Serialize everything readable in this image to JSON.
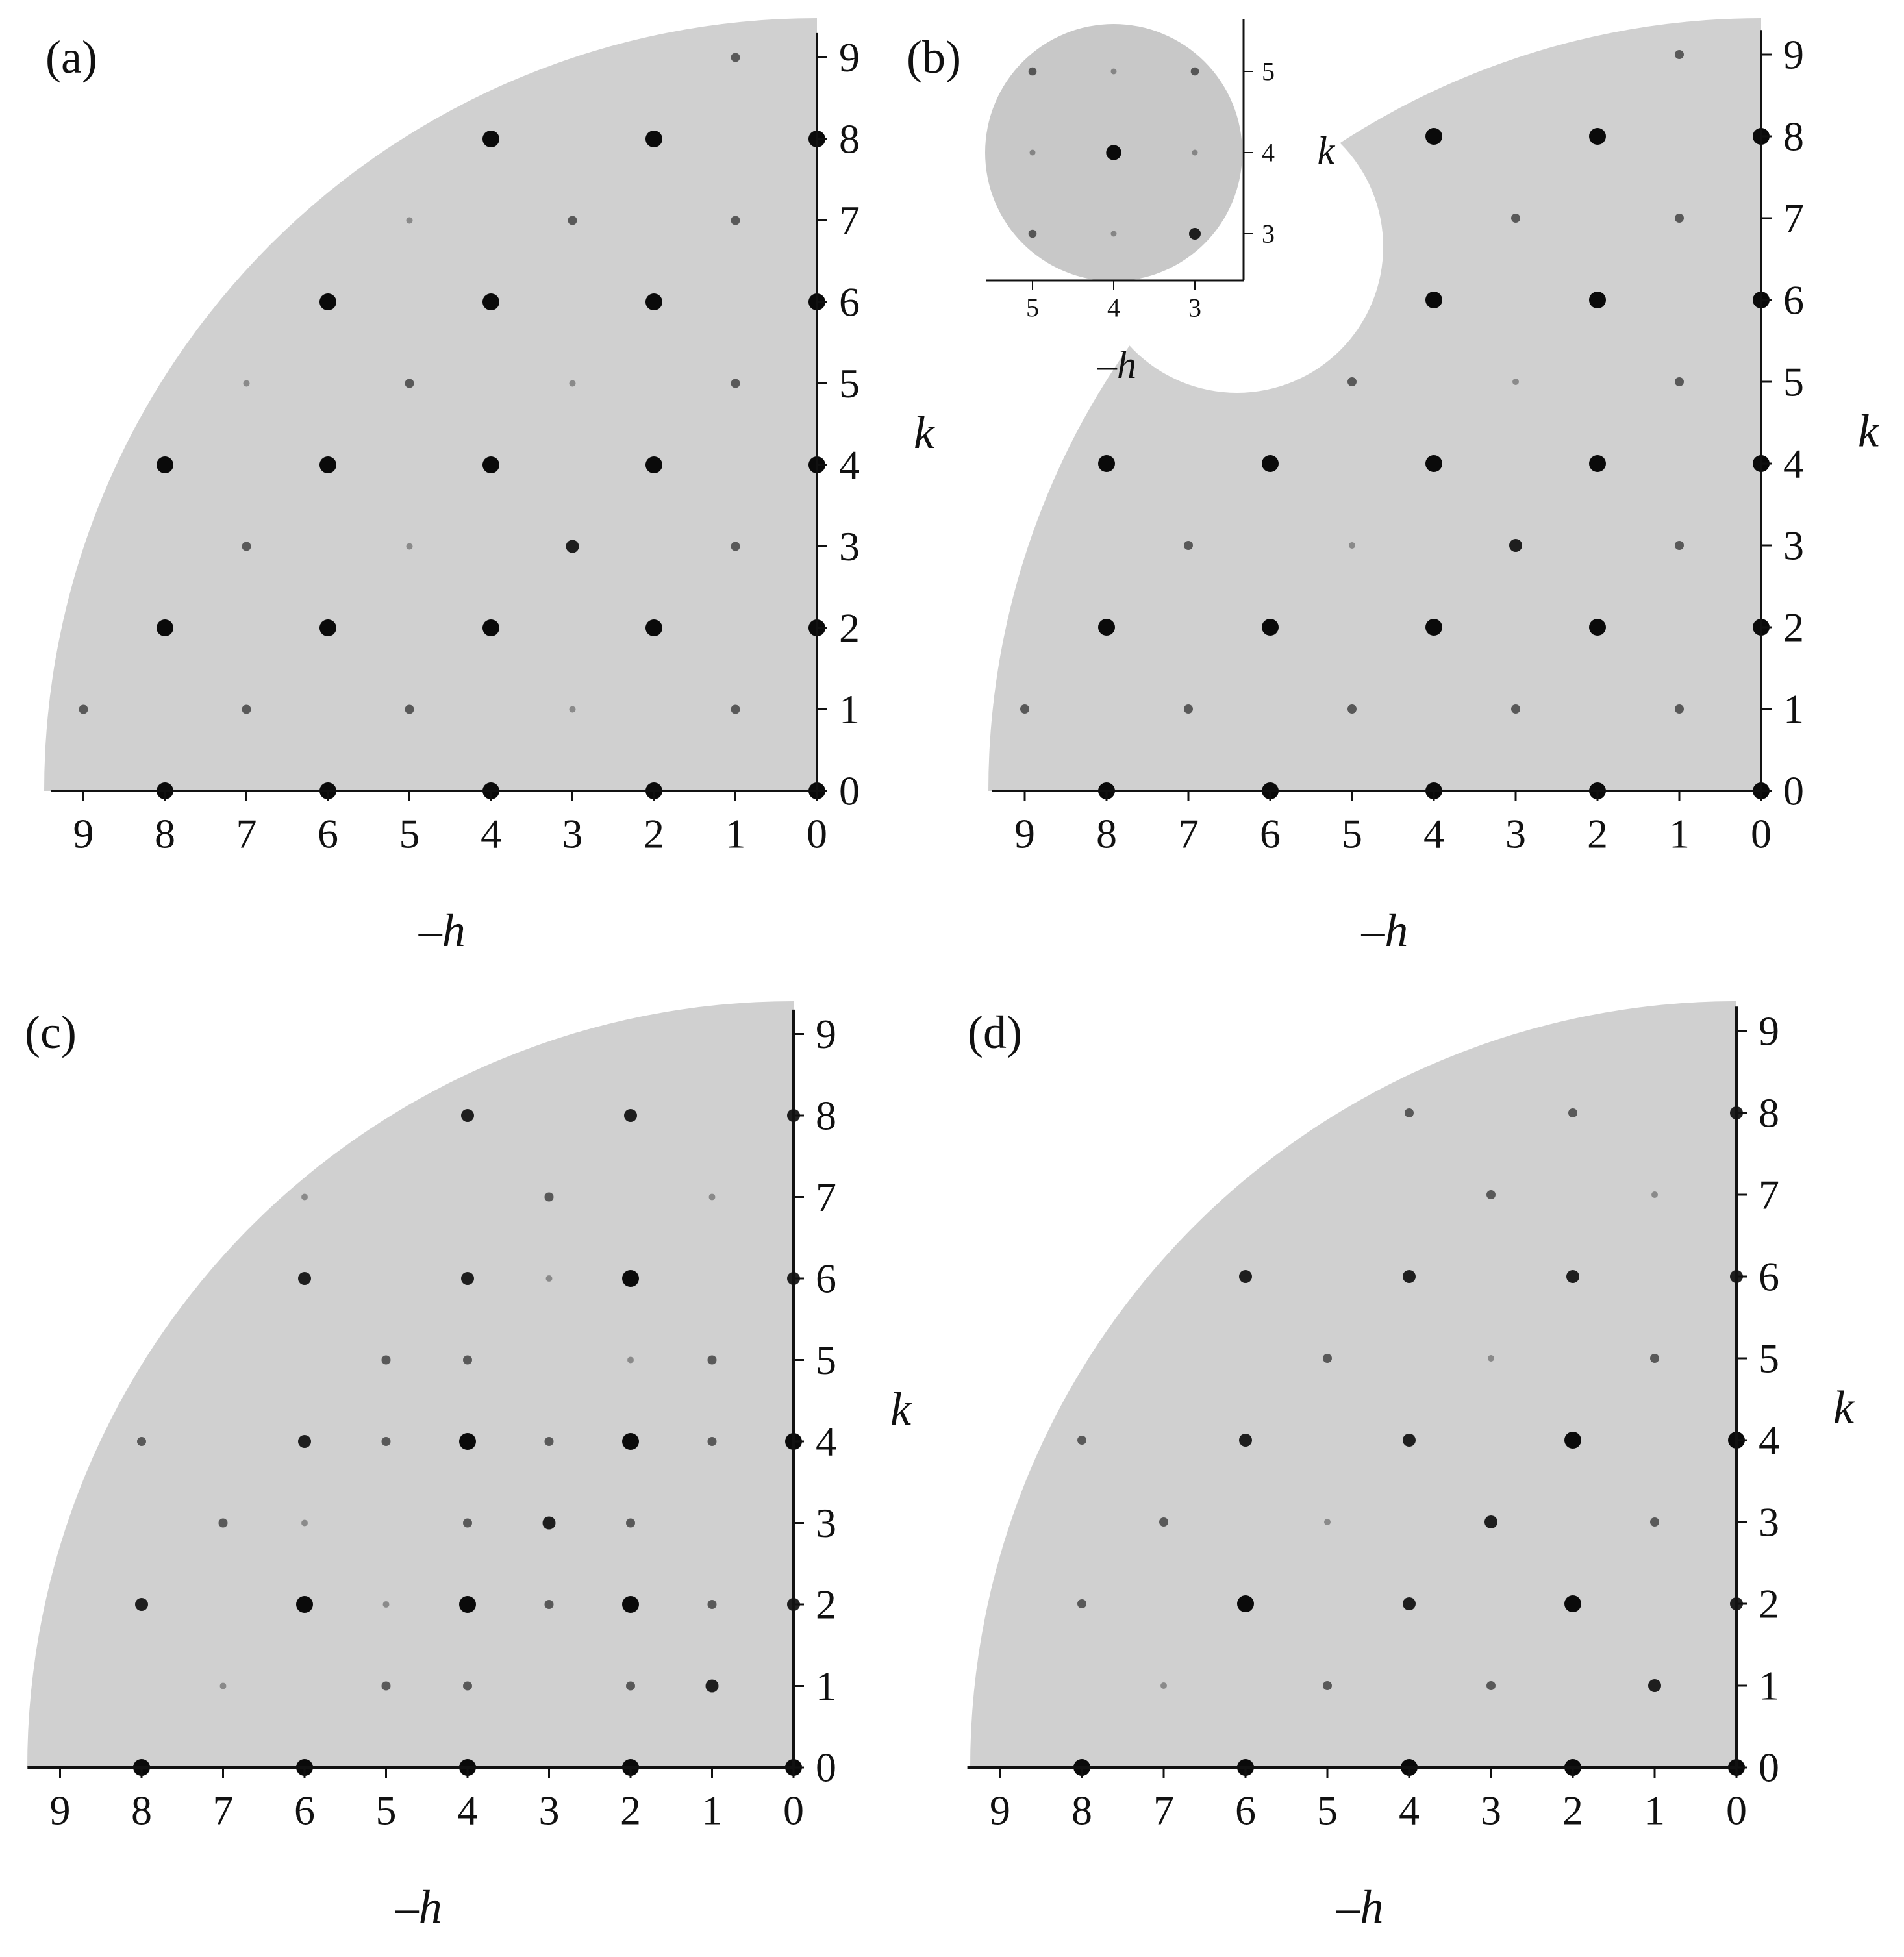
{
  "figure": {
    "axis_labels": {
      "x": "–h",
      "y": "k"
    },
    "ticks": [
      "0",
      "1",
      "2",
      "3",
      "4",
      "5",
      "6",
      "7",
      "8",
      "9"
    ],
    "colors": {
      "background": "#d0d0d0",
      "spot": "#0a0a0a",
      "axis": "#111111"
    }
  },
  "panels": [
    {
      "label": "(a)",
      "spots": [
        [
          0,
          0,
          3
        ],
        [
          2,
          0,
          3
        ],
        [
          4,
          0,
          3
        ],
        [
          6,
          0,
          3
        ],
        [
          8,
          0,
          3
        ],
        [
          1,
          1,
          1
        ],
        [
          3,
          1,
          0
        ],
        [
          5,
          1,
          1
        ],
        [
          7,
          1,
          1
        ],
        [
          9,
          1,
          1
        ],
        [
          0,
          2,
          3
        ],
        [
          2,
          2,
          3
        ],
        [
          4,
          2,
          3
        ],
        [
          6,
          2,
          3
        ],
        [
          8,
          2,
          3
        ],
        [
          1,
          3,
          1
        ],
        [
          3,
          3,
          2
        ],
        [
          5,
          3,
          0
        ],
        [
          7,
          3,
          1
        ],
        [
          0,
          4,
          3
        ],
        [
          2,
          4,
          3
        ],
        [
          4,
          4,
          3
        ],
        [
          6,
          4,
          3
        ],
        [
          8,
          4,
          3
        ],
        [
          1,
          5,
          1
        ],
        [
          3,
          5,
          0
        ],
        [
          5,
          5,
          1
        ],
        [
          7,
          5,
          0
        ],
        [
          0,
          6,
          3
        ],
        [
          2,
          6,
          3
        ],
        [
          4,
          6,
          3
        ],
        [
          6,
          6,
          3
        ],
        [
          1,
          7,
          1
        ],
        [
          3,
          7,
          1
        ],
        [
          5,
          7,
          0
        ],
        [
          0,
          8,
          3
        ],
        [
          2,
          8,
          3
        ],
        [
          4,
          8,
          3
        ],
        [
          1,
          9,
          1
        ]
      ]
    },
    {
      "label": "(b)",
      "spots": [
        [
          0,
          0,
          3
        ],
        [
          2,
          0,
          3
        ],
        [
          4,
          0,
          3
        ],
        [
          6,
          0,
          3
        ],
        [
          8,
          0,
          3
        ],
        [
          1,
          1,
          1
        ],
        [
          3,
          1,
          1
        ],
        [
          5,
          1,
          1
        ],
        [
          7,
          1,
          1
        ],
        [
          9,
          1,
          1
        ],
        [
          0,
          2,
          3
        ],
        [
          2,
          2,
          3
        ],
        [
          4,
          2,
          3
        ],
        [
          6,
          2,
          3
        ],
        [
          8,
          2,
          3
        ],
        [
          1,
          3,
          1
        ],
        [
          3,
          3,
          2
        ],
        [
          5,
          3,
          0
        ],
        [
          7,
          3,
          1
        ],
        [
          0,
          4,
          3
        ],
        [
          2,
          4,
          3
        ],
        [
          4,
          4,
          3
        ],
        [
          6,
          4,
          3
        ],
        [
          8,
          4,
          3
        ],
        [
          1,
          5,
          1
        ],
        [
          3,
          5,
          0
        ],
        [
          5,
          5,
          1
        ],
        [
          0,
          6,
          3
        ],
        [
          2,
          6,
          3
        ],
        [
          4,
          6,
          3
        ],
        [
          1,
          7,
          1
        ],
        [
          3,
          7,
          1
        ],
        [
          0,
          8,
          3
        ],
        [
          2,
          8,
          3
        ],
        [
          4,
          8,
          3
        ],
        [
          1,
          9,
          1
        ]
      ],
      "inset": {
        "ticks_x": [
          "5",
          "4",
          "3"
        ],
        "ticks_y": [
          "3",
          "4",
          "5"
        ],
        "spots": [
          [
            5,
            5,
            1
          ],
          [
            4,
            5,
            0
          ],
          [
            3,
            5,
            1
          ],
          [
            5,
            4,
            0
          ],
          [
            4,
            4,
            3
          ],
          [
            3,
            4,
            0
          ],
          [
            5,
            3,
            1
          ],
          [
            4,
            3,
            0
          ],
          [
            3,
            3,
            2
          ]
        ]
      }
    },
    {
      "label": "(c)",
      "spots": [
        [
          0,
          0,
          3
        ],
        [
          2,
          0,
          3
        ],
        [
          4,
          0,
          3
        ],
        [
          6,
          0,
          3
        ],
        [
          8,
          0,
          3
        ],
        [
          1,
          1,
          2
        ],
        [
          2,
          1,
          1
        ],
        [
          4,
          1,
          1
        ],
        [
          5,
          1,
          1
        ],
        [
          7,
          1,
          0
        ],
        [
          0,
          2,
          2
        ],
        [
          1,
          2,
          1
        ],
        [
          2,
          2,
          3
        ],
        [
          3,
          2,
          1
        ],
        [
          4,
          2,
          3
        ],
        [
          5,
          2,
          0
        ],
        [
          6,
          2,
          3
        ],
        [
          8,
          2,
          2
        ],
        [
          2,
          3,
          1
        ],
        [
          3,
          3,
          2
        ],
        [
          4,
          3,
          1
        ],
        [
          6,
          3,
          0
        ],
        [
          7,
          3,
          1
        ],
        [
          0,
          4,
          3
        ],
        [
          1,
          4,
          1
        ],
        [
          2,
          4,
          3
        ],
        [
          3,
          4,
          1
        ],
        [
          4,
          4,
          3
        ],
        [
          5,
          4,
          1
        ],
        [
          6,
          4,
          2
        ],
        [
          8,
          4,
          1
        ],
        [
          1,
          5,
          1
        ],
        [
          2,
          5,
          0
        ],
        [
          4,
          5,
          1
        ],
        [
          5,
          5,
          1
        ],
        [
          0,
          6,
          2
        ],
        [
          2,
          6,
          3
        ],
        [
          3,
          6,
          0
        ],
        [
          4,
          6,
          2
        ],
        [
          6,
          6,
          2
        ],
        [
          1,
          7,
          0
        ],
        [
          3,
          7,
          1
        ],
        [
          6,
          7,
          0
        ],
        [
          0,
          8,
          2
        ],
        [
          2,
          8,
          2
        ],
        [
          4,
          8,
          2
        ]
      ]
    },
    {
      "label": "(d)",
      "spots": [
        [
          0,
          0,
          3
        ],
        [
          2,
          0,
          3
        ],
        [
          4,
          0,
          3
        ],
        [
          6,
          0,
          3
        ],
        [
          8,
          0,
          3
        ],
        [
          1,
          1,
          2
        ],
        [
          3,
          1,
          1
        ],
        [
          5,
          1,
          1
        ],
        [
          7,
          1,
          0
        ],
        [
          0,
          2,
          2
        ],
        [
          2,
          2,
          3
        ],
        [
          4,
          2,
          2
        ],
        [
          6,
          2,
          3
        ],
        [
          8,
          2,
          1
        ],
        [
          1,
          3,
          1
        ],
        [
          3,
          3,
          2
        ],
        [
          5,
          3,
          0
        ],
        [
          7,
          3,
          1
        ],
        [
          0,
          4,
          3
        ],
        [
          2,
          4,
          3
        ],
        [
          4,
          4,
          2
        ],
        [
          6,
          4,
          2
        ],
        [
          8,
          4,
          1
        ],
        [
          1,
          5,
          1
        ],
        [
          3,
          5,
          0
        ],
        [
          5,
          5,
          1
        ],
        [
          0,
          6,
          2
        ],
        [
          2,
          6,
          2
        ],
        [
          4,
          6,
          2
        ],
        [
          6,
          6,
          2
        ],
        [
          1,
          7,
          0
        ],
        [
          3,
          7,
          1
        ],
        [
          0,
          8,
          2
        ],
        [
          2,
          8,
          1
        ],
        [
          4,
          8,
          1
        ]
      ]
    }
  ]
}
